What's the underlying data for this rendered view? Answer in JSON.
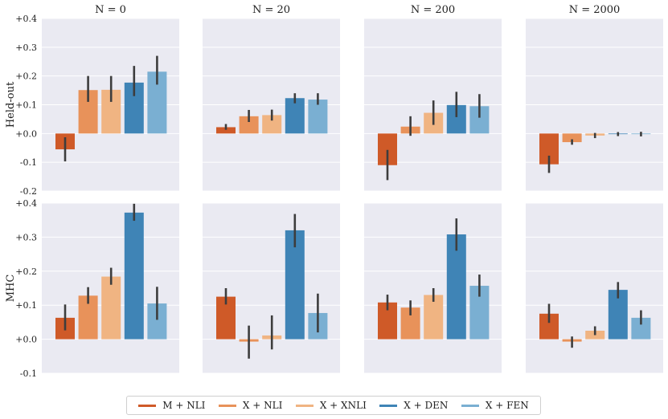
{
  "legend": {
    "items": [
      {
        "label": "M + NLI",
        "color": "#cf5a28"
      },
      {
        "label": "X + NLI",
        "color": "#e8925a"
      },
      {
        "label": "X + XNLI",
        "color": "#f0b482"
      },
      {
        "label": "X + DEN",
        "color": "#3f84b6"
      },
      {
        "label": "X + FEN",
        "color": "#7aafd2"
      }
    ]
  },
  "chart_data": {
    "type": "bar",
    "column_titles": [
      "N = 0",
      "N = 20",
      "N = 200",
      "N = 2000"
    ],
    "series_names": [
      "M + NLI",
      "X + NLI",
      "X + XNLI",
      "X + DEN",
      "X + FEN"
    ],
    "series_colors": [
      "#cf5a28",
      "#e8925a",
      "#f0b482",
      "#3f84b6",
      "#7aafd2"
    ],
    "background": "#eaeaf2",
    "rows": [
      {
        "ylabel": "Held-out",
        "ylim": [
          -0.2,
          0.4
        ],
        "yticks": [
          {
            "value": -0.2,
            "label": "-0.2"
          },
          {
            "value": -0.1,
            "label": "-0.1"
          },
          {
            "value": 0.0,
            "label": "+0.0"
          },
          {
            "value": 0.1,
            "label": "+0.1"
          },
          {
            "value": 0.2,
            "label": "+0.2"
          },
          {
            "value": 0.3,
            "label": "+0.3"
          },
          {
            "value": 0.4,
            "label": "+0.4"
          }
        ],
        "panels": [
          {
            "title": "N = 0",
            "values": [
              -0.055,
              0.151,
              0.152,
              0.177,
              0.215
            ],
            "ci": [
              [
                -0.097,
                -0.013
              ],
              [
                0.11,
                0.2
              ],
              [
                0.11,
                0.2
              ],
              [
                0.13,
                0.235
              ],
              [
                0.17,
                0.27
              ]
            ]
          },
          {
            "title": "N = 20",
            "values": [
              0.022,
              0.06,
              0.064,
              0.123,
              0.118
            ],
            "ci": [
              [
                0.013,
                0.033
              ],
              [
                0.04,
                0.082
              ],
              [
                0.045,
                0.083
              ],
              [
                0.105,
                0.14
              ],
              [
                0.1,
                0.14
              ]
            ]
          },
          {
            "title": "N = 200",
            "values": [
              -0.11,
              0.024,
              0.072,
              0.099,
              0.095
            ],
            "ci": [
              [
                -0.162,
                -0.057
              ],
              [
                -0.008,
                0.06
              ],
              [
                0.03,
                0.115
              ],
              [
                0.057,
                0.145
              ],
              [
                0.055,
                0.137
              ]
            ]
          },
          {
            "title": "N = 2000",
            "values": [
              -0.107,
              -0.03,
              -0.007,
              -0.002,
              -0.002
            ],
            "ci": [
              [
                -0.137,
                -0.077
              ],
              [
                -0.039,
                -0.02
              ],
              [
                -0.016,
                0.002
              ],
              [
                -0.009,
                0.005
              ],
              [
                -0.01,
                0.006
              ]
            ]
          }
        ]
      },
      {
        "ylabel": "MHC",
        "ylim": [
          -0.1,
          0.4
        ],
        "yticks": [
          {
            "value": -0.1,
            "label": "-0.1"
          },
          {
            "value": 0.0,
            "label": "+0.0"
          },
          {
            "value": 0.1,
            "label": "+0.1"
          },
          {
            "value": 0.2,
            "label": "+0.2"
          },
          {
            "value": 0.3,
            "label": "+0.3"
          },
          {
            "value": 0.4,
            "label": "+0.4"
          }
        ],
        "panels": [
          {
            "title": "N = 0",
            "values": [
              0.063,
              0.128,
              0.184,
              0.372,
              0.105
            ],
            "ci": [
              [
                0.026,
                0.102
              ],
              [
                0.104,
                0.153
              ],
              [
                0.16,
                0.21
              ],
              [
                0.348,
                0.398
              ],
              [
                0.057,
                0.154
              ]
            ]
          },
          {
            "title": "N = 20",
            "values": [
              0.125,
              -0.007,
              0.011,
              0.32,
              0.077
            ],
            "ci": [
              [
                0.102,
                0.15
              ],
              [
                -0.057,
                0.04
              ],
              [
                -0.03,
                0.07
              ],
              [
                0.27,
                0.368
              ],
              [
                0.02,
                0.134
              ]
            ]
          },
          {
            "title": "N = 200",
            "values": [
              0.108,
              0.093,
              0.13,
              0.308,
              0.157
            ],
            "ci": [
              [
                0.085,
                0.131
              ],
              [
                0.07,
                0.114
              ],
              [
                0.11,
                0.15
              ],
              [
                0.26,
                0.355
              ],
              [
                0.125,
                0.19
              ]
            ]
          },
          {
            "title": "N = 2000",
            "values": [
              0.075,
              -0.007,
              0.025,
              0.145,
              0.063
            ],
            "ci": [
              [
                0.048,
                0.104
              ],
              [
                -0.025,
                0.008
              ],
              [
                0.012,
                0.038
              ],
              [
                0.12,
                0.168
              ],
              [
                0.043,
                0.085
              ]
            ]
          }
        ]
      }
    ]
  }
}
